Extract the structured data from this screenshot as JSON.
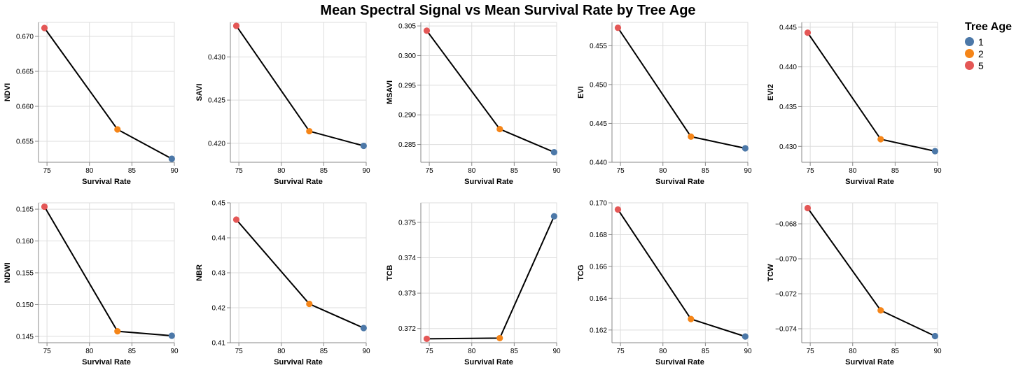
{
  "chart_data": {
    "type": "line",
    "title": "Mean Spectral Signal vs Mean Survival Rate by Tree Age",
    "legend": {
      "title": "Tree Age",
      "placement": "top-right",
      "items": [
        {
          "label": "1",
          "color": "#4c78a8"
        },
        {
          "label": "2",
          "color": "#f58518"
        },
        {
          "label": "5",
          "color": "#e45756"
        }
      ]
    },
    "x": [
      74.7,
      83.3,
      89.7
    ],
    "point_labels": [
      "5",
      "2",
      "1"
    ],
    "xlabel": "Survival Rate",
    "xlim": [
      74,
      90
    ],
    "xticks": [
      75,
      80,
      85,
      90
    ],
    "grid": true,
    "line_color": "#000000",
    "panels": [
      {
        "ylabel": "NDVI",
        "values": [
          0.6712,
          0.6567,
          0.6525
        ],
        "ylim": [
          0.652,
          0.672
        ],
        "yticks": [
          "0.655",
          "0.660",
          "0.665",
          "0.670"
        ]
      },
      {
        "ylabel": "SAVI",
        "values": [
          0.4336,
          0.4214,
          0.4197
        ],
        "ylim": [
          0.4178,
          0.434
        ],
        "yticks": [
          "0.420",
          "0.425",
          "0.430"
        ]
      },
      {
        "ylabel": "MSAVI",
        "values": [
          0.3042,
          0.2876,
          0.2837
        ],
        "ylim": [
          0.282,
          0.3056
        ],
        "yticks": [
          "0.285",
          "0.290",
          "0.295",
          "0.300",
          "0.305"
        ]
      },
      {
        "ylabel": "EVI",
        "values": [
          0.4573,
          0.4433,
          0.4418
        ],
        "ylim": [
          0.44,
          0.458
        ],
        "yticks": [
          "0.440",
          "0.445",
          "0.450",
          "0.455"
        ]
      },
      {
        "ylabel": "EVI2",
        "values": [
          0.4443,
          0.4309,
          0.4294
        ],
        "ylim": [
          0.428,
          0.4456
        ],
        "yticks": [
          "0.430",
          "0.435",
          "0.440",
          "0.445"
        ]
      },
      {
        "ylabel": "NDWI",
        "values": [
          0.1654,
          0.1458,
          0.1451
        ],
        "ylim": [
          0.144,
          0.166
        ],
        "yticks": [
          "0.145",
          "0.150",
          "0.155",
          "0.160",
          "0.165"
        ]
      },
      {
        "ylabel": "NBR",
        "values": [
          0.4452,
          0.4211,
          0.4142
        ],
        "ylim": [
          0.41,
          0.45
        ],
        "yticks": [
          "0.41",
          "0.42",
          "0.43",
          "0.44",
          "0.45"
        ]
      },
      {
        "ylabel": "TCB",
        "values": [
          0.37171,
          0.37173,
          0.37517
        ],
        "ylim": [
          0.3716,
          0.37555
        ],
        "yticks": [
          "0.372",
          "0.373",
          "0.374",
          "0.375"
        ]
      },
      {
        "ylabel": "TCG",
        "values": [
          0.16958,
          0.16269,
          0.16159
        ],
        "ylim": [
          0.1612,
          0.17
        ],
        "yticks": [
          "0.162",
          "0.164",
          "0.166",
          "0.168",
          "0.170"
        ]
      },
      {
        "ylabel": "TCW",
        "values": [
          -0.0671,
          -0.07295,
          -0.07442
        ],
        "ylim": [
          -0.0748,
          -0.0668
        ],
        "yticks": [
          "−0.068",
          "−0.070",
          "−0.072",
          "−0.074"
        ]
      }
    ]
  }
}
